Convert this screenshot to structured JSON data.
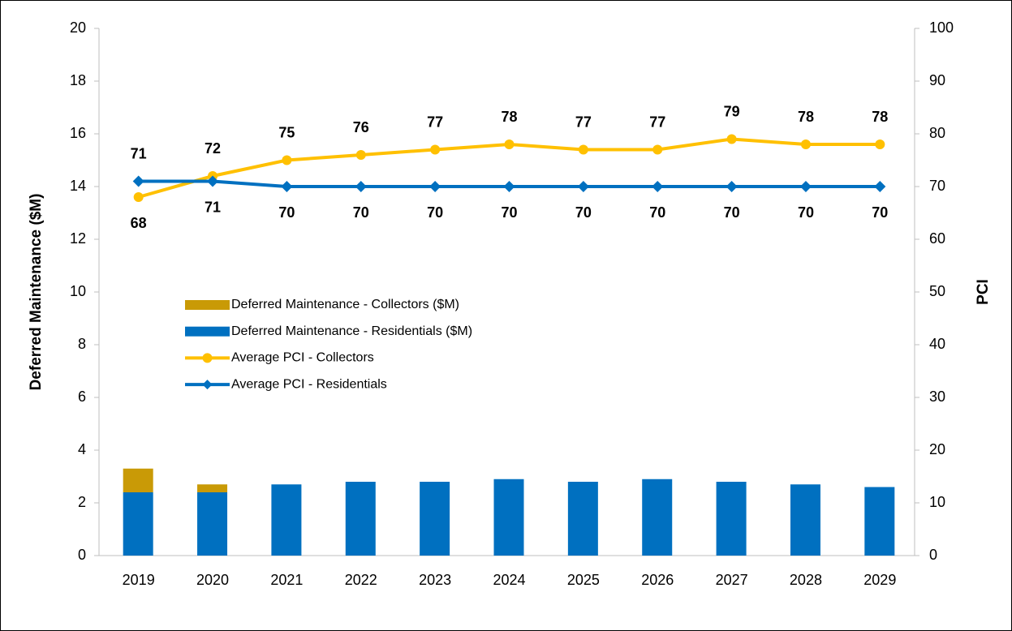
{
  "chart_data": {
    "type": "bar",
    "stacked": true,
    "categories": [
      "2019",
      "2020",
      "2021",
      "2022",
      "2023",
      "2024",
      "2025",
      "2026",
      "2027",
      "2028",
      "2029"
    ],
    "y_label": "Deferred Maintenance ($M)",
    "y2_label": "PCI",
    "ylim": [
      0,
      20
    ],
    "yticks": [
      0,
      2,
      4,
      6,
      8,
      10,
      12,
      14,
      16,
      18,
      20
    ],
    "y2lim": [
      0,
      100
    ],
    "y2ticks": [
      0,
      10,
      20,
      30,
      40,
      50,
      60,
      70,
      80,
      90,
      100
    ],
    "series": [
      {
        "name": "Deferred Maintenance - Collectors ($M)",
        "type": "bar",
        "color": "#c99a06",
        "values": [
          0.9,
          0.3,
          0,
          0,
          0,
          0,
          0,
          0,
          0,
          0,
          0
        ]
      },
      {
        "name": "Deferred Maintenance - Residentials ($M)",
        "type": "bar",
        "color": "#0070c0",
        "values": [
          2.4,
          2.4,
          2.7,
          2.8,
          2.8,
          2.9,
          2.8,
          2.9,
          2.8,
          2.7,
          2.6
        ]
      },
      {
        "name": "Average PCI - Collectors",
        "type": "line",
        "axis": "y2",
        "marker": "circle",
        "color": "#ffc000",
        "label_color": "#595959",
        "values": [
          68,
          72,
          75,
          76,
          77,
          78,
          77,
          77,
          79,
          78,
          78
        ]
      },
      {
        "name": "Average PCI - Residentials",
        "type": "line",
        "axis": "y2",
        "marker": "diamond",
        "color": "#0070c0",
        "label_color": "#000000",
        "values": [
          71,
          71,
          70,
          70,
          70,
          70,
          70,
          70,
          70,
          70,
          70
        ]
      }
    ]
  }
}
